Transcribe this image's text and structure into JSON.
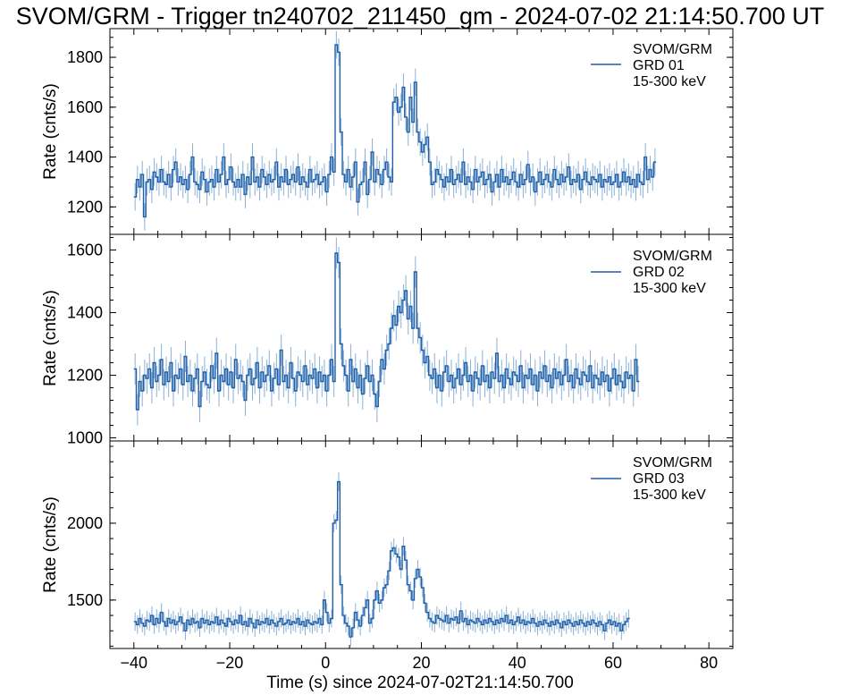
{
  "title": "SVOM/GRM - Trigger tn240702_211450_gm - 2024-07-02 21:14:50.700 UT",
  "xlabel": "Time (s) since 2024-07-02T21:14:50.700",
  "colors": {
    "line": "#1f5fa6",
    "error": "#8ab0d8",
    "axis": "#000000"
  },
  "chart_data": [
    {
      "type": "line",
      "ylabel": "Rate (cnts/s)",
      "xlim": [
        -45,
        85
      ],
      "ylim": [
        1090,
        1915
      ],
      "yticks": [
        1200,
        1400,
        1600,
        1800
      ],
      "xticks": [
        -40,
        -20,
        0,
        20,
        40,
        60,
        80
      ],
      "legend": {
        "position": "top-right",
        "lines": [
          "SVOM/GRM",
          "GRD 01",
          "15-300 keV"
        ]
      },
      "bin_width": 0.5,
      "x_start": -40,
      "errors": 55,
      "series": [
        {
          "name": "SVOM/GRM GRD 01 15-300 keV",
          "values": [
            1240,
            1310,
            1280,
            1330,
            1160,
            1300,
            1310,
            1270,
            1340,
            1320,
            1300,
            1350,
            1300,
            1290,
            1330,
            1280,
            1350,
            1380,
            1300,
            1320,
            1290,
            1310,
            1270,
            1330,
            1400,
            1300,
            1290,
            1270,
            1340,
            1310,
            1260,
            1300,
            1310,
            1280,
            1350,
            1300,
            1330,
            1400,
            1290,
            1310,
            1360,
            1300,
            1280,
            1310,
            1280,
            1330,
            1250,
            1320,
            1290,
            1400,
            1300,
            1320,
            1280,
            1350,
            1320,
            1290,
            1330,
            1300,
            1310,
            1380,
            1280,
            1320,
            1300,
            1350,
            1290,
            1310,
            1330,
            1300,
            1360,
            1290,
            1320,
            1300,
            1280,
            1350,
            1300,
            1310,
            1330,
            1290,
            1300,
            1320,
            1260,
            1330,
            1400,
            1340,
            1850,
            1820,
            1500,
            1330,
            1300,
            1350,
            1280,
            1320,
            1380,
            1220,
            1290,
            1300,
            1380,
            1250,
            1310,
            1420,
            1300,
            1350,
            1330,
            1290,
            1350,
            1380,
            1320,
            1300,
            1620,
            1640,
            1580,
            1600,
            1680,
            1560,
            1500,
            1640,
            1540,
            1700,
            1500,
            1460,
            1420,
            1450,
            1480,
            1380,
            1290,
            1300,
            1350,
            1330,
            1310,
            1280,
            1320,
            1300,
            1350,
            1290,
            1310,
            1330,
            1300,
            1380,
            1290,
            1320,
            1300,
            1270,
            1350,
            1300,
            1320,
            1340,
            1290,
            1310,
            1330,
            1260,
            1300,
            1330,
            1280,
            1350,
            1300,
            1320,
            1290,
            1310,
            1340,
            1300,
            1280,
            1330,
            1290,
            1310,
            1370,
            1300,
            1320,
            1260,
            1300,
            1340,
            1290,
            1310,
            1330,
            1300,
            1280,
            1350,
            1310,
            1290,
            1330,
            1300,
            1320,
            1360,
            1290,
            1310,
            1300,
            1330,
            1270,
            1310,
            1340,
            1300,
            1290,
            1320,
            1310,
            1300,
            1330,
            1280,
            1310,
            1300,
            1320,
            1290,
            1300,
            1330,
            1280,
            1300,
            1340,
            1300,
            1320,
            1290,
            1310,
            1280,
            1330,
            1300,
            1290,
            1400,
            1310,
            1350,
            1320,
            1380
          ]
        }
      ]
    },
    {
      "type": "line",
      "ylabel": "Rate (cnts/s)",
      "xlim": [
        -45,
        85
      ],
      "ylim": [
        990,
        1650
      ],
      "yticks": [
        1000,
        1200,
        1400,
        1600
      ],
      "xticks": [
        -40,
        -20,
        0,
        20,
        40,
        60,
        80
      ],
      "legend": {
        "position": "top-right",
        "lines": [
          "SVOM/GRM",
          "GRD 02",
          "15-300 keV"
        ]
      },
      "bin_width": 0.5,
      "x_start": -40,
      "errors": 50,
      "series": [
        {
          "name": "SVOM/GRM GRD 02 15-300 keV",
          "values": [
            1220,
            1090,
            1180,
            1150,
            1200,
            1190,
            1220,
            1160,
            1240,
            1180,
            1200,
            1250,
            1170,
            1210,
            1180,
            1240,
            1150,
            1200,
            1190,
            1220,
            1170,
            1260,
            1180,
            1200,
            1150,
            1190,
            1220,
            1100,
            1180,
            1210,
            1170,
            1160,
            1230,
            1190,
            1270,
            1150,
            1200,
            1180,
            1220,
            1170,
            1210,
            1160,
            1250,
            1190,
            1200,
            1180,
            1120,
            1200,
            1220,
            1170,
            1190,
            1240,
            1160,
            1210,
            1180,
            1200,
            1230,
            1150,
            1190,
            1220,
            1170,
            1280,
            1180,
            1200,
            1160,
            1240,
            1190,
            1150,
            1210,
            1200,
            1180,
            1230,
            1170,
            1200,
            1190,
            1220,
            1160,
            1210,
            1180,
            1200,
            1150,
            1200,
            1250,
            1180,
            1590,
            1560,
            1300,
            1230,
            1200,
            1150,
            1250,
            1180,
            1220,
            1160,
            1200,
            1140,
            1190,
            1230,
            1180,
            1200,
            1140,
            1100,
            1180,
            1250,
            1220,
            1280,
            1300,
            1350,
            1390,
            1360,
            1420,
            1400,
            1440,
            1470,
            1380,
            1420,
            1350,
            1530,
            1350,
            1320,
            1280,
            1240,
            1260,
            1200,
            1190,
            1220,
            1160,
            1200,
            1150,
            1210,
            1230,
            1180,
            1200,
            1160,
            1190,
            1220,
            1170,
            1200,
            1240,
            1180,
            1200,
            1150,
            1210,
            1190,
            1170,
            1230,
            1180,
            1200,
            1160,
            1210,
            1190,
            1270,
            1180,
            1200,
            1160,
            1220,
            1190,
            1170,
            1210,
            1200,
            1180,
            1230,
            1160,
            1200,
            1190,
            1220,
            1170,
            1200,
            1150,
            1210,
            1190,
            1230,
            1180,
            1200,
            1160,
            1220,
            1190,
            1210,
            1170,
            1200,
            1250,
            1180,
            1200,
            1160,
            1220,
            1190,
            1170,
            1210,
            1200,
            1180,
            1230,
            1160,
            1200,
            1190,
            1170,
            1210,
            1180,
            1200,
            1150,
            1190,
            1220,
            1170,
            1200,
            1180,
            1160,
            1210,
            1190,
            1200,
            1150,
            1250,
            1180
          ]
        }
      ]
    },
    {
      "type": "line",
      "ylabel": "Rate (cnts/s)",
      "xlim": [
        -45,
        85
      ],
      "ylim": [
        1185,
        2535
      ],
      "yticks": [
        1500,
        2000
      ],
      "xticks": [
        -40,
        -20,
        0,
        20,
        40,
        60,
        80
      ],
      "legend": {
        "position": "top-right",
        "lines": [
          "SVOM/GRM",
          "GRD 03",
          "15-300 keV"
        ]
      },
      "bin_width": 0.5,
      "x_start": -40,
      "errors": 60,
      "series": [
        {
          "name": "SVOM/GRM GRD 03 15-300 keV",
          "values": [
            1360,
            1340,
            1380,
            1350,
            1330,
            1370,
            1360,
            1400,
            1340,
            1380,
            1350,
            1420,
            1360,
            1330,
            1380,
            1350,
            1370,
            1340,
            1360,
            1390,
            1350,
            1300,
            1370,
            1340,
            1380,
            1350,
            1360,
            1320,
            1380,
            1350,
            1370,
            1340,
            1360,
            1350,
            1390,
            1340,
            1370,
            1350,
            1330,
            1380,
            1360,
            1340,
            1370,
            1350,
            1400,
            1340,
            1360,
            1330,
            1380,
            1350,
            1320,
            1370,
            1340,
            1360,
            1350,
            1380,
            1340,
            1370,
            1350,
            1330,
            1360,
            1380,
            1340,
            1350,
            1370,
            1340,
            1360,
            1350,
            1380,
            1340,
            1360,
            1330,
            1370,
            1350,
            1340,
            1360,
            1350,
            1380,
            1340,
            1500,
            1420,
            1350,
            1380,
            2000,
            2020,
            2270,
            1600,
            1400,
            1350,
            1330,
            1260,
            1320,
            1420,
            1370,
            1330,
            1400,
            1450,
            1500,
            1350,
            1380,
            1500,
            1560,
            1480,
            1500,
            1580,
            1600,
            1690,
            1820,
            1840,
            1800,
            1780,
            1700,
            1850,
            1760,
            1600,
            1560,
            1500,
            1640,
            1700,
            1650,
            1580,
            1480,
            1420,
            1380,
            1360,
            1350,
            1400,
            1380,
            1370,
            1360,
            1400,
            1350,
            1380,
            1370,
            1390,
            1350,
            1430,
            1360,
            1380,
            1340,
            1370,
            1360,
            1350,
            1380,
            1360,
            1340,
            1370,
            1350,
            1380,
            1360,
            1340,
            1370,
            1350,
            1380,
            1360,
            1400,
            1350,
            1370,
            1340,
            1360,
            1390,
            1350,
            1370,
            1340,
            1360,
            1350,
            1380,
            1350,
            1330,
            1360,
            1340,
            1370,
            1350,
            1330,
            1360,
            1340,
            1370,
            1350,
            1320,
            1360,
            1340,
            1370,
            1350,
            1330,
            1360,
            1340,
            1370,
            1350,
            1330,
            1360,
            1340,
            1370,
            1350,
            1330,
            1360,
            1340,
            1300,
            1350,
            1370,
            1340,
            1360,
            1330,
            1350,
            1300,
            1340,
            1360,
            1380
          ]
        }
      ]
    }
  ]
}
